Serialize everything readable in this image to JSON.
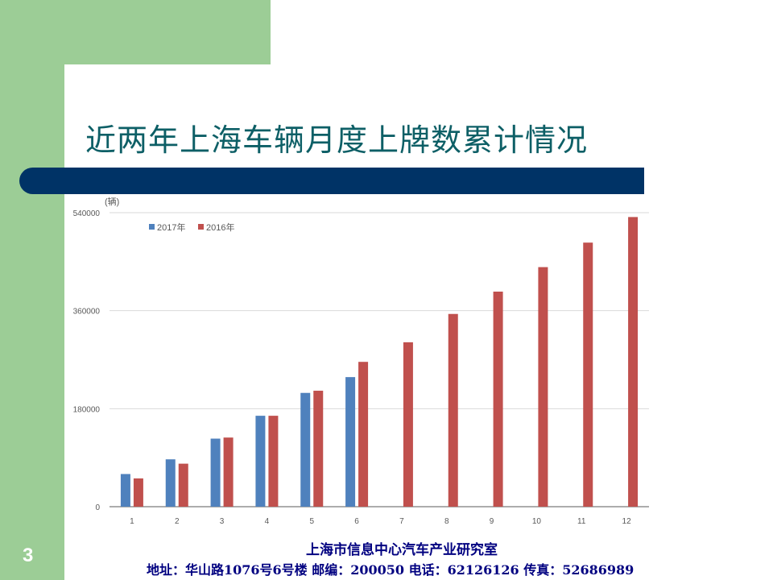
{
  "slide": {
    "title": "近两年上海车辆月度上牌数累计情况",
    "footer_org": "上海市信息中心汽车产业研究室",
    "footer_contact": "地址：华山路1076号6号楼 邮编：200050 电话：62126126 传真：52686989",
    "page_number": "3",
    "colors": {
      "green": "#9ccd96",
      "navy": "#003366",
      "title": "#0d5f66",
      "footer": "#000080"
    }
  },
  "chart_data": {
    "type": "bar",
    "unit_label": "(辆)",
    "categories": [
      "1",
      "2",
      "3",
      "4",
      "5",
      "6",
      "7",
      "8",
      "9",
      "10",
      "11",
      "12"
    ],
    "yticks": [
      "0",
      "180000",
      "360000",
      "540000"
    ],
    "ylim": [
      0,
      540000
    ],
    "grid": true,
    "legend_position": "top-left",
    "series": [
      {
        "name": "2017年",
        "color": "#4f81bd",
        "values": [
          60000,
          87000,
          125000,
          167000,
          209000,
          238000,
          null,
          null,
          null,
          null,
          null,
          null
        ]
      },
      {
        "name": "2016年",
        "color": "#c0504d",
        "values": [
          52000,
          79000,
          127000,
          167000,
          213000,
          266000,
          302000,
          354000,
          395000,
          440000,
          485000,
          532000
        ]
      }
    ]
  }
}
